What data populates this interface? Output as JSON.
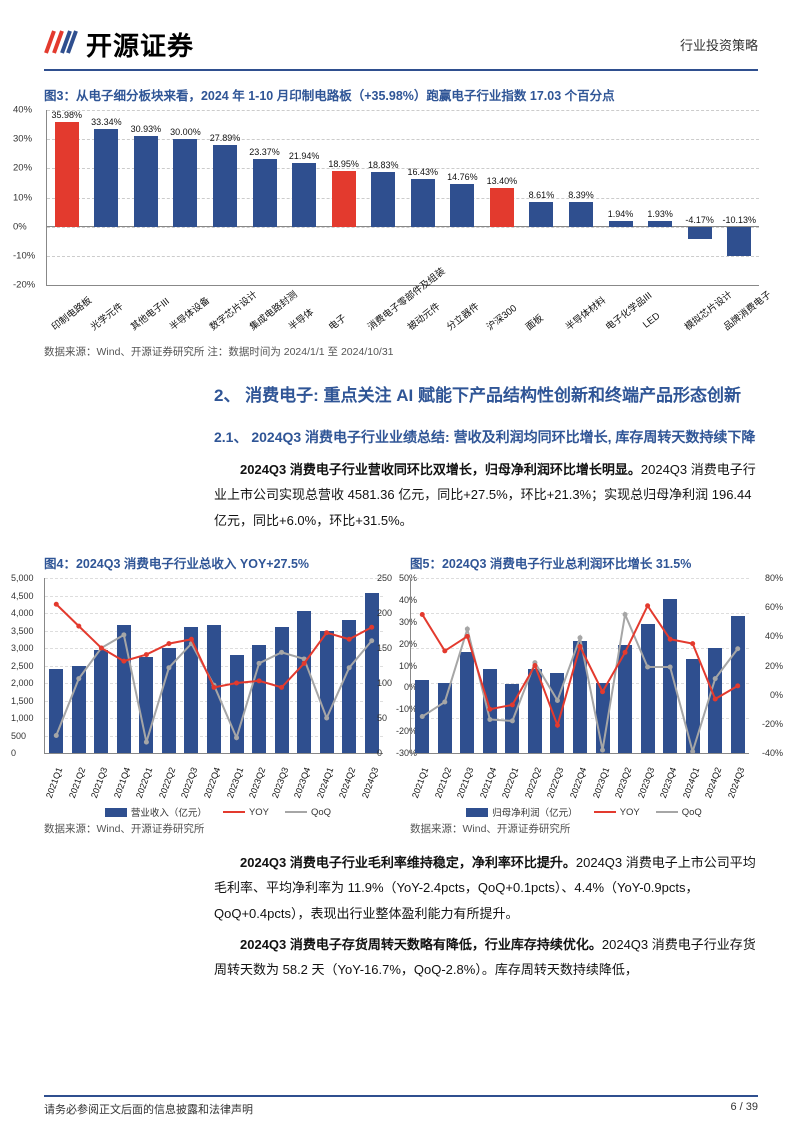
{
  "header": {
    "company": "开源证券",
    "doc_type": "行业投资策略"
  },
  "footer": {
    "disclaimer": "请务必参阅正文后面的信息披露和法律声明",
    "page": "6 / 39"
  },
  "fig3": {
    "title": "图3：从电子细分板块来看，2024 年 1-10 月印制电路板（+35.98%）跑赢电子行业指数 17.03 个百分点",
    "source": "数据来源：Wind、开源证券研究所  注：数据时间为 2024/1/1 至 2024/10/31",
    "ylim": [
      -20,
      40
    ],
    "ytick_step": 10,
    "yticks": [
      "-20%",
      "-10%",
      "0%",
      "10%",
      "20%",
      "30%",
      "40%"
    ],
    "default_color": "#2f4f8f",
    "highlight_color": "#e33a2e",
    "items": [
      {
        "label": "印制电路板",
        "value": 35.98,
        "fmt": "35.98%",
        "hl": true
      },
      {
        "label": "光学元件",
        "value": 33.34,
        "fmt": "33.34%"
      },
      {
        "label": "其他电子III",
        "value": 30.93,
        "fmt": "30.93%"
      },
      {
        "label": "半导体设备",
        "value": 30.0,
        "fmt": "30.00%"
      },
      {
        "label": "数字芯片设计",
        "value": 27.89,
        "fmt": "27.89%"
      },
      {
        "label": "集成电路封测",
        "value": 23.37,
        "fmt": "23.37%"
      },
      {
        "label": "半导体",
        "value": 21.94,
        "fmt": "21.94%"
      },
      {
        "label": "电子",
        "value": 18.95,
        "fmt": "18.95%",
        "hl": true
      },
      {
        "label": "消费电子零部件及组装",
        "value": 18.83,
        "fmt": "18.83%"
      },
      {
        "label": "被动元件",
        "value": 16.43,
        "fmt": "16.43%"
      },
      {
        "label": "分立器件",
        "value": 14.76,
        "fmt": "14.76%"
      },
      {
        "label": "沪深300",
        "value": 13.4,
        "fmt": "13.40%",
        "hl": true
      },
      {
        "label": "面板",
        "value": 8.61,
        "fmt": "8.61%"
      },
      {
        "label": "半导体材料",
        "value": 8.39,
        "fmt": "8.39%"
      },
      {
        "label": "电子化学品III",
        "value": 1.94,
        "fmt": "1.94%"
      },
      {
        "label": "LED",
        "value": 1.93,
        "fmt": "1.93%"
      },
      {
        "label": "模拟芯片设计",
        "value": -4.17,
        "fmt": "-4.17%"
      },
      {
        "label": "品牌消费电子",
        "value": -10.13,
        "fmt": "-10.13%"
      }
    ]
  },
  "sec2": {
    "h1": "2、 消费电子: 重点关注 AI 赋能下产品结构性创新和终端产品形态创新",
    "h2": "2.1、 2024Q3 消费电子行业业绩总结: 营收及利润均同环比增长, 库存周转天数持续下降",
    "p1_bold": "2024Q3 消费电子行业营收同环比双增长，归母净利润环比增长明显。",
    "p1_rest": "2024Q3 消费电子行业上市公司实现总营收 4581.36 亿元，同比+27.5%，环比+21.3%；实现总归母净利润 196.44 亿元，同比+6.0%，环比+31.5%。",
    "p2_bold": "2024Q3 消费电子行业毛利率维持稳定，净利率环比提升。",
    "p2_rest": "2024Q3 消费电子上市公司平均毛利率、平均净利率为 11.9%（YoY-2.4pcts，QoQ+0.1pcts）、4.4%（YoY-0.9pcts，QoQ+0.4pcts），表现出行业整体盈利能力有所提升。",
    "p3_bold": "2024Q3 消费电子存货周转天数略有降低，行业库存持续优化。",
    "p3_rest": "2024Q3 消费电子行业存货周转天数为 58.2 天（YoY-16.7%，QoQ-2.8%）。库存周转天数持续降低，"
  },
  "fig4": {
    "title": "图4：2024Q3 消费电子行业总收入 YOY+27.5%",
    "source": "数据来源：Wind、开源证券研究所",
    "left_ylim": [
      0,
      5000
    ],
    "left_ticks": [
      "0",
      "500",
      "1,000",
      "1,500",
      "2,000",
      "2,500",
      "3,000",
      "3,500",
      "4,000",
      "4,500",
      "5,000"
    ],
    "right_ylim": [
      -30,
      50
    ],
    "right_ticks": [
      "-30%",
      "-20%",
      "-10%",
      "0%",
      "10%",
      "20%",
      "30%",
      "40%",
      "50%"
    ],
    "bar_color": "#2f4f8f",
    "yoy_color": "#e33a2e",
    "qoq_color": "#a6a6a6",
    "legend": {
      "bar": "营业收入（亿元）",
      "yoy": "YOY",
      "qoq": "QoQ"
    },
    "periods": [
      "2021Q1",
      "2021Q2",
      "2021Q3",
      "2021Q4",
      "2022Q1",
      "2022Q2",
      "2022Q3",
      "2022Q4",
      "2023Q1",
      "2023Q2",
      "2023Q3",
      "2023Q4",
      "2024Q1",
      "2024Q2",
      "2024Q3"
    ],
    "bars": [
      2400,
      2500,
      2950,
      3650,
      2750,
      3000,
      3600,
      3650,
      2800,
      3100,
      3600,
      4050,
      3500,
      3800,
      4581
    ],
    "yoy": [
      38,
      28,
      18,
      12,
      15,
      20,
      22,
      0,
      2,
      3,
      0,
      11,
      25,
      22,
      27.5
    ],
    "qoq": [
      -22,
      4,
      18,
      24,
      -25,
      9,
      20,
      1,
      -23,
      11,
      16,
      13,
      -14,
      9,
      21.3
    ]
  },
  "fig5": {
    "title": "图5：2024Q3 消费电子行业总利润环比增长 31.5%",
    "source": "数据来源：Wind、开源证券研究所",
    "left_ylim": [
      0,
      250
    ],
    "left_ticks": [
      "0",
      "50",
      "100",
      "150",
      "200",
      "250"
    ],
    "right_ylim": [
      -40,
      80
    ],
    "right_ticks": [
      "-40%",
      "-20%",
      "0%",
      "20%",
      "40%",
      "60%",
      "80%"
    ],
    "bar_color": "#2f4f8f",
    "yoy_color": "#e33a2e",
    "qoq_color": "#a6a6a6",
    "legend": {
      "bar": "归母净利润（亿元）",
      "yoy": "YOY",
      "qoq": "QoQ"
    },
    "periods": [
      "2021Q1",
      "2021Q2",
      "2021Q3",
      "2021Q4",
      "2022Q1",
      "2022Q2",
      "2022Q3",
      "2022Q4",
      "2023Q1",
      "2023Q2",
      "2023Q3",
      "2023Q4",
      "2024Q1",
      "2024Q2",
      "2024Q3"
    ],
    "bars": [
      105,
      100,
      145,
      120,
      98,
      120,
      115,
      160,
      100,
      155,
      185,
      220,
      135,
      150,
      196
    ],
    "yoy": [
      55,
      30,
      40,
      -10,
      -7,
      20,
      -21,
      33,
      2,
      29,
      61,
      38,
      35,
      -3,
      6
    ],
    "qoq": [
      -15,
      -5,
      45,
      -17,
      -18,
      22,
      -4,
      39,
      -38,
      55,
      19,
      19,
      -39,
      11,
      31.5
    ]
  }
}
